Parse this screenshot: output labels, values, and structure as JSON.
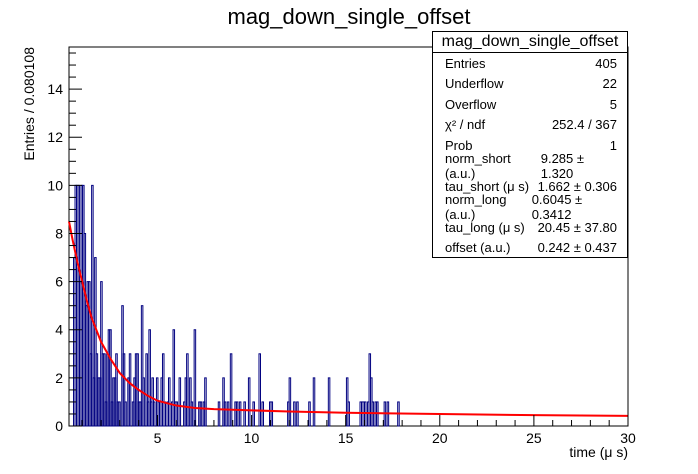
{
  "chart_data": {
    "type": "histogram",
    "title": "mag_down_single_offset",
    "xlabel": "time (μ s)",
    "ylabel": "Entries / 0.080108",
    "xlim": [
      0.3,
      30.0
    ],
    "ylim": [
      0,
      15.75
    ],
    "bin_width": 0.080108,
    "xticks": [
      5,
      10,
      15,
      20,
      25,
      30
    ],
    "yticks": [
      0,
      2,
      4,
      6,
      8,
      10,
      12,
      14
    ],
    "histogram_color": "#000080",
    "fit_color": "#ff0000",
    "histogram_values": [
      0,
      0,
      0,
      7,
      10,
      10,
      10,
      6,
      10,
      10,
      8,
      5,
      6,
      6,
      3,
      10,
      2,
      7,
      3,
      2,
      2,
      6,
      3,
      3,
      1,
      3,
      4,
      4,
      1,
      2,
      2,
      3,
      1,
      1,
      0,
      5,
      3,
      1,
      0,
      2,
      3,
      0,
      1,
      2,
      3,
      3,
      1,
      1,
      5,
      2,
      0,
      3,
      1,
      4,
      1,
      2,
      1,
      0,
      2,
      1,
      1,
      2,
      3,
      1,
      0,
      1,
      2,
      0,
      1,
      4,
      1,
      1,
      0,
      2,
      0,
      0,
      1,
      2,
      3,
      0,
      2,
      1,
      0,
      4,
      0,
      0,
      1,
      1,
      0,
      1,
      2,
      0,
      0,
      0,
      0,
      0,
      0,
      0,
      0,
      1,
      0,
      0,
      2,
      1,
      0,
      1,
      0,
      3,
      0,
      0,
      1,
      1,
      0,
      1,
      0,
      0,
      1,
      0,
      0,
      2,
      0,
      0,
      1,
      0,
      0,
      0,
      3,
      0,
      1,
      0,
      0,
      0,
      0,
      1,
      1,
      0,
      0,
      0,
      0,
      0,
      0,
      0,
      0,
      0,
      0,
      1,
      2,
      0,
      0,
      1,
      0,
      1,
      0,
      0,
      0,
      0,
      0,
      0,
      0,
      1,
      0,
      0,
      2,
      0,
      0,
      0,
      0,
      0,
      0,
      0,
      0,
      0,
      2,
      0,
      0,
      0,
      0,
      0,
      0,
      0,
      0,
      0,
      0,
      0,
      2,
      1,
      0,
      0,
      0,
      0,
      0,
      0,
      0,
      1,
      1,
      1,
      1,
      0,
      1,
      3,
      2,
      1,
      0,
      1,
      1,
      0,
      0,
      0,
      0,
      1,
      0,
      1,
      0,
      0,
      0,
      0,
      0,
      0,
      1,
      0,
      0,
      0,
      0,
      0,
      0,
      0,
      0,
      0,
      0,
      0,
      0,
      0,
      0,
      0,
      0,
      0,
      0,
      0,
      0,
      0,
      0,
      0,
      0,
      0,
      0,
      0,
      0,
      0,
      0,
      0,
      0,
      0,
      0,
      0,
      0,
      0,
      0,
      0,
      0,
      0,
      0,
      0,
      0,
      0,
      0,
      0,
      0,
      0,
      0,
      0,
      0,
      0,
      0,
      0,
      0,
      0,
      0,
      0,
      0,
      0,
      0,
      0,
      0,
      0,
      0,
      0,
      0,
      0,
      0,
      0,
      0,
      0,
      0,
      0,
      0,
      0,
      0,
      0,
      0,
      0,
      0,
      0,
      0,
      0,
      0,
      0,
      0,
      0,
      0,
      0,
      0,
      0,
      0,
      0,
      0,
      0,
      0,
      0,
      0,
      0,
      0,
      0,
      0,
      0,
      0,
      0,
      0,
      0,
      0,
      0,
      0,
      0,
      0,
      0,
      0,
      0,
      0,
      0,
      0,
      0,
      0,
      0,
      0,
      0,
      0,
      0,
      0,
      0,
      0,
      0,
      0,
      0,
      0,
      0,
      0,
      0,
      0,
      0,
      0,
      0,
      0,
      0,
      0,
      0,
      0,
      0,
      0,
      0,
      0,
      0,
      0,
      0,
      0,
      0,
      0,
      0,
      0,
      0,
      0,
      0,
      0,
      0,
      0,
      0,
      0,
      0,
      0,
      0,
      0,
      0,
      0,
      0,
      0,
      0,
      0,
      0,
      0,
      0,
      0,
      0,
      0,
      0,
      0,
      0,
      0
    ],
    "fit_curve": {
      "x": [
        0.3,
        0.5,
        0.75,
        1.0,
        1.25,
        1.5,
        1.75,
        2.0,
        2.5,
        3.0,
        3.5,
        4.0,
        4.5,
        5.0,
        6.0,
        7.0,
        8.0,
        10.0,
        12.0,
        15.0,
        20.0,
        25.0,
        30.0
      ],
      "y": [
        8.5,
        7.7,
        6.8,
        6.0,
        5.2,
        4.5,
        4.0,
        3.5,
        2.8,
        2.2,
        1.8,
        1.5,
        1.25,
        1.05,
        0.85,
        0.75,
        0.7,
        0.65,
        0.6,
        0.55,
        0.5,
        0.45,
        0.42
      ]
    }
  },
  "stats": {
    "title": "mag_down_single_offset",
    "rows": [
      {
        "label": "Entries",
        "value": "405"
      },
      {
        "label": "Underflow",
        "value": "22"
      },
      {
        "label": "Overflow",
        "value": "5"
      },
      {
        "label": "χ² / ndf",
        "value": "252.4 / 367"
      },
      {
        "label": "Prob",
        "value": "1"
      },
      {
        "label": "norm_short (a.u.)",
        "value": "9.285 ± 1.320"
      },
      {
        "label": "tau_short (μ s)",
        "value": "1.662 ± 0.306"
      },
      {
        "label": "norm_long (a.u.)",
        "value": "0.6045 ± 0.3412"
      },
      {
        "label": "tau_long (μ s)",
        "value": "20.45 ± 37.80"
      },
      {
        "label": "offset (a.u.)",
        "value": "0.242 ± 0.437"
      }
    ]
  }
}
